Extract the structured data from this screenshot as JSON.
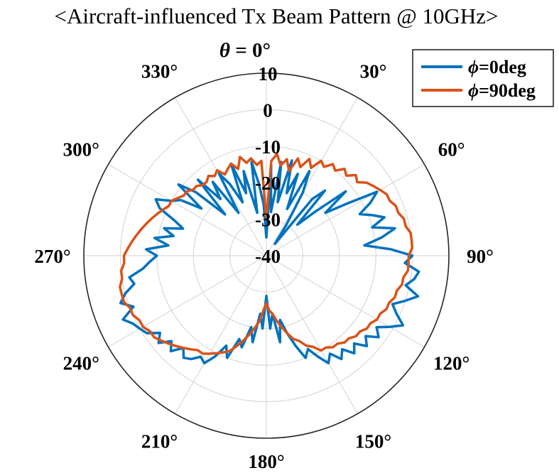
{
  "chart_data": {
    "type": "polar",
    "title": "<Aircraft-influenced Tx Beam Pattern @ 10GHz>",
    "theta_zero_label": {
      "symbol": "θ",
      "rest": " = 0°"
    },
    "theta_direction": "clockwise",
    "theta_zero_location": "top",
    "angle_ticks": [
      "30°",
      "60°",
      "90°",
      "120°",
      "150°",
      "180°",
      "210°",
      "240°",
      "270°",
      "300°",
      "330°"
    ],
    "angle_tick_values": [
      30,
      60,
      90,
      120,
      150,
      180,
      210,
      240,
      270,
      300,
      330
    ],
    "r_ticks": [
      "-40",
      "-30",
      "-20",
      "-10",
      "0",
      "10"
    ],
    "r_tick_values": [
      -40,
      -30,
      -20,
      -10,
      0,
      10
    ],
    "rlim": [
      -40,
      10
    ],
    "grid": true,
    "legend_position": "top-right",
    "series": [
      {
        "name": "ϕ=0deg",
        "phi_symbol": "ϕ",
        "phi_rest": "=0deg",
        "color": "#0072BD",
        "angles_deg": [
          0,
          3,
          6,
          9,
          12,
          15,
          18,
          21,
          24,
          27,
          30,
          33,
          36,
          39,
          42,
          45,
          48,
          51,
          54,
          57,
          60,
          63,
          66,
          69,
          72,
          75,
          78,
          81,
          84,
          87,
          90,
          93,
          96,
          99,
          102,
          105,
          108,
          111,
          114,
          117,
          120,
          123,
          126,
          129,
          132,
          135,
          138,
          141,
          144,
          147,
          150,
          153,
          156,
          159,
          162,
          165,
          168,
          171,
          174,
          177,
          180,
          183,
          186,
          189,
          192,
          195,
          198,
          201,
          204,
          207,
          210,
          213,
          216,
          219,
          222,
          225,
          228,
          231,
          234,
          237,
          240,
          243,
          246,
          249,
          252,
          255,
          258,
          261,
          264,
          267,
          270,
          273,
          276,
          279,
          282,
          285,
          288,
          291,
          294,
          297,
          300,
          303,
          306,
          309,
          312,
          315,
          318,
          321,
          324,
          327,
          330,
          333,
          336,
          339,
          342,
          345,
          348,
          351,
          354,
          357
        ],
        "values_db": [
          -35,
          -15,
          -28,
          -14,
          -25,
          -13,
          -22,
          -16,
          -26,
          -14,
          -20,
          -30,
          -36,
          -20,
          -16,
          -28,
          -22,
          -12,
          -20,
          -14,
          -5,
          -8,
          -12,
          -9,
          -6,
          -10,
          -4,
          -8,
          -13,
          -6,
          0,
          -2,
          2,
          1,
          -1,
          3,
          0,
          -3,
          -1,
          2,
          -1,
          -4,
          -2,
          -5,
          -3,
          -6,
          -4,
          -7,
          -5,
          -8,
          -6,
          -9,
          -12,
          -10,
          -14,
          -18,
          -22,
          -16,
          -24,
          -20,
          -29,
          -20,
          -24,
          -16,
          -20,
          -14,
          -16,
          -10,
          -13,
          -9,
          -6,
          -7,
          -5,
          -4,
          -6,
          -3,
          -5,
          -2,
          -4,
          -1,
          0,
          1,
          3,
          -1,
          2,
          0,
          -3,
          -2,
          -6,
          -8,
          -10,
          -7,
          -13,
          -9,
          -14,
          -11,
          -16,
          -13,
          -8,
          -6,
          -10,
          -12,
          -18,
          -9,
          -14,
          -24,
          -12,
          -20,
          -15,
          -26,
          -14,
          -18,
          -24,
          -13,
          -22,
          -16,
          -28,
          -14,
          -20,
          -26
        ]
      },
      {
        "name": "ϕ=90deg",
        "phi_symbol": "ϕ",
        "phi_rest": "=90deg",
        "color": "#D95319",
        "angles_deg": [
          0,
          3,
          6,
          9,
          12,
          15,
          18,
          21,
          24,
          27,
          30,
          33,
          36,
          39,
          42,
          45,
          48,
          51,
          54,
          57,
          60,
          63,
          66,
          69,
          72,
          75,
          78,
          81,
          84,
          87,
          90,
          93,
          96,
          99,
          102,
          105,
          108,
          111,
          114,
          117,
          120,
          123,
          126,
          129,
          132,
          135,
          138,
          141,
          144,
          147,
          150,
          153,
          156,
          159,
          162,
          165,
          168,
          171,
          174,
          177,
          180,
          183,
          186,
          189,
          192,
          195,
          198,
          201,
          204,
          207,
          210,
          213,
          216,
          219,
          222,
          225,
          228,
          231,
          234,
          237,
          240,
          243,
          246,
          249,
          252,
          255,
          258,
          261,
          264,
          267,
          270,
          273,
          276,
          279,
          282,
          285,
          288,
          291,
          294,
          297,
          300,
          303,
          306,
          309,
          312,
          315,
          318,
          321,
          324,
          327,
          330,
          333,
          336,
          339,
          342,
          345,
          348,
          351,
          354,
          357
        ],
        "values_db": [
          -30,
          -14,
          -12,
          -15,
          -13,
          -16,
          -12,
          -14,
          -11,
          -13,
          -10,
          -11,
          -9,
          -10,
          -8,
          -9,
          -7,
          -8,
          -6,
          -5,
          -4,
          -3,
          -3,
          -2,
          -2,
          -1,
          -1,
          0,
          0,
          0,
          -1,
          -1,
          -1,
          -2,
          -2,
          -3,
          -3,
          -4,
          -4,
          -5,
          -5,
          -6,
          -6,
          -7,
          -7,
          -8,
          -8,
          -9,
          -9,
          -10,
          -10,
          -12,
          -13,
          -15,
          -16,
          -18,
          -20,
          -22,
          -24,
          -25,
          -27,
          -25,
          -22,
          -20,
          -18,
          -16,
          -14,
          -12,
          -11,
          -10,
          -9,
          -8,
          -8,
          -7,
          -6,
          -5,
          -4,
          -3,
          -2,
          -2,
          -1,
          -1,
          0,
          0,
          1,
          1,
          1,
          0,
          0,
          -1,
          -1,
          -2,
          -3,
          -4,
          -5,
          -6,
          -7,
          -8,
          -9,
          -10,
          -10,
          -11,
          -12,
          -12,
          -13,
          -13,
          -14,
          -14,
          -13,
          -14,
          -13,
          -15,
          -14,
          -13,
          -15,
          -12,
          -14,
          -13,
          -15,
          -14
        ]
      }
    ]
  }
}
